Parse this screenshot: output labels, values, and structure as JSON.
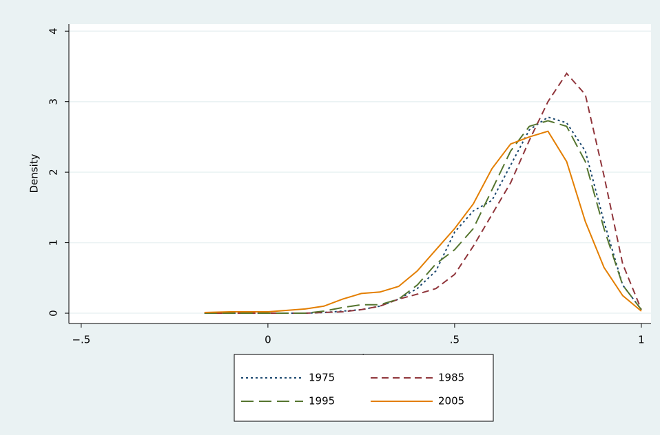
{
  "chart_data": {
    "type": "line",
    "xlabel": "Spearman's rho",
    "ylabel": "Density",
    "x": [
      -0.17,
      -0.1,
      0,
      0.1,
      0.15,
      0.2,
      0.25,
      0.3,
      0.35,
      0.4,
      0.45,
      0.5,
      0.55,
      0.6,
      0.65,
      0.7,
      0.75,
      0.8,
      0.85,
      0.9,
      0.95,
      1.0
    ],
    "series": [
      {
        "name": "1975",
        "color": "#1a476f",
        "dash": "dotted",
        "values": [
          0,
          0,
          0,
          0,
          0.01,
          0.03,
          0.05,
          0.1,
          0.2,
          0.35,
          0.6,
          1.15,
          1.45,
          1.6,
          2.1,
          2.6,
          2.78,
          2.7,
          2.3,
          1.3,
          0.4,
          0.05
        ]
      },
      {
        "name": "1985",
        "color": "#90353b",
        "dash": "dashed",
        "values": [
          0,
          0,
          0,
          0,
          0.01,
          0.02,
          0.05,
          0.1,
          0.2,
          0.27,
          0.35,
          0.55,
          0.95,
          1.4,
          1.85,
          2.45,
          3.0,
          3.4,
          3.1,
          1.95,
          0.7,
          0.05
        ]
      },
      {
        "name": "1995",
        "color": "#55752f",
        "dash": "longdash",
        "values": [
          0,
          0,
          0,
          0,
          0.03,
          0.08,
          0.12,
          0.12,
          0.2,
          0.4,
          0.7,
          0.9,
          1.2,
          1.75,
          2.3,
          2.65,
          2.73,
          2.65,
          2.15,
          1.2,
          0.4,
          0.05
        ]
      },
      {
        "name": "2005",
        "color": "#e37e00",
        "dash": "solid",
        "values": [
          0.01,
          0.02,
          0.02,
          0.06,
          0.1,
          0.2,
          0.28,
          0.3,
          0.38,
          0.6,
          0.9,
          1.2,
          1.55,
          2.05,
          2.4,
          2.5,
          2.58,
          2.15,
          1.3,
          0.65,
          0.25,
          0.03
        ]
      }
    ],
    "xlim": [
      -0.533,
      1.026
    ],
    "xticks": [
      {
        "value": -0.5,
        "label": "−.5"
      },
      0,
      {
        "value": 0.5,
        "label": ".5"
      },
      1
    ],
    "ylim": [
      -0.146,
      4.1
    ],
    "yticks": [
      0,
      1,
      2,
      3,
      4
    ],
    "grid": true
  }
}
